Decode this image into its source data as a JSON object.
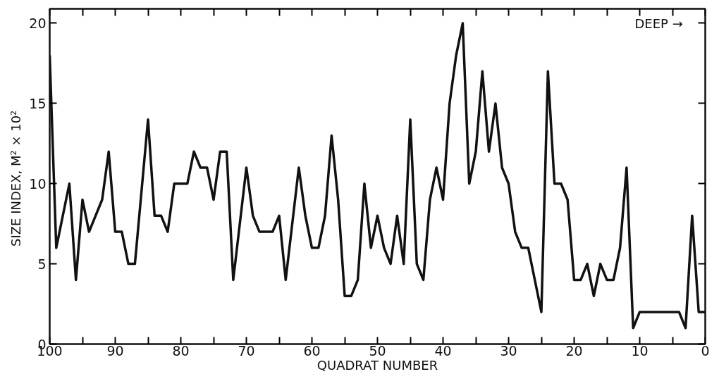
{
  "chart_data": {
    "type": "line",
    "xlabel": "QUADRAT NUMBER",
    "ylabel": "SIZE INDEX,  M² × 10²",
    "annotations": [
      "DEEP →"
    ],
    "x": [
      100,
      99,
      97,
      96,
      95,
      94,
      92,
      91,
      90,
      89,
      88,
      87,
      85,
      84,
      83,
      82,
      81,
      79,
      78,
      77,
      76,
      75,
      74,
      73,
      72,
      70,
      69,
      68,
      66,
      65,
      64,
      62,
      61,
      60,
      59,
      58,
      57,
      56,
      55,
      54,
      53,
      52,
      51,
      50,
      49,
      48,
      47,
      46,
      45,
      44,
      43,
      42,
      41,
      40,
      39,
      38,
      37,
      36,
      35,
      34,
      33,
      32,
      31,
      30,
      29,
      28,
      27,
      25,
      24,
      23,
      22,
      21,
      20,
      19,
      18,
      17,
      16,
      15,
      14,
      13,
      12,
      11,
      10,
      4,
      3,
      2,
      1,
      0
    ],
    "series": [
      {
        "color": "#111111",
        "values": [
          18,
          6,
          10,
          4,
          9,
          7,
          9,
          12,
          7,
          7,
          5,
          5,
          14,
          8,
          8,
          7,
          10,
          10,
          12,
          11,
          11,
          9,
          12,
          12,
          4,
          11,
          8,
          7,
          7,
          8,
          4,
          11,
          8,
          6,
          6,
          8,
          13,
          9,
          3,
          3,
          4,
          10,
          6,
          8,
          6,
          5,
          8,
          5,
          14,
          5,
          4,
          9,
          11,
          9,
          15,
          18,
          20,
          10,
          12,
          17,
          12,
          15,
          11,
          10,
          7,
          6,
          6,
          2,
          17,
          10,
          10,
          9,
          4,
          4,
          5,
          3,
          5,
          4,
          4,
          6,
          11,
          1,
          2,
          2,
          1,
          8,
          2,
          2
        ]
      }
    ],
    "xlim": [
      100,
      0
    ],
    "ylim": [
      0,
      20.9
    ],
    "xticks": [
      100,
      {
        "value": 95,
        "label": null
      },
      90,
      {
        "value": 85,
        "label": null
      },
      80,
      {
        "value": 75,
        "label": null
      },
      70,
      {
        "value": 65,
        "label": null
      },
      60,
      {
        "value": 55,
        "label": null
      },
      50,
      {
        "value": 45,
        "label": null
      },
      40,
      {
        "value": 35,
        "label": null
      },
      30,
      {
        "value": 25,
        "label": null
      },
      20,
      {
        "value": 15,
        "label": null
      },
      10,
      {
        "value": 5,
        "label": null
      },
      0
    ],
    "yticks": [
      0,
      5,
      10,
      15,
      20
    ],
    "grid": false,
    "marker": "none",
    "line_style": "solid"
  }
}
